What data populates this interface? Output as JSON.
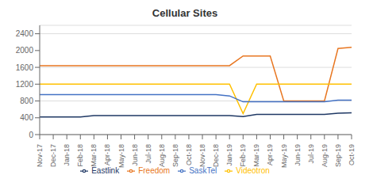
{
  "chart_data": {
    "type": "line",
    "title": "Cellular Sites",
    "categories": [
      "Nov-17",
      "Dec-17",
      "Jan-18",
      "Feb-18",
      "Mar-18",
      "Apr-18",
      "May-18",
      "Jun-18",
      "Jul-18",
      "Aug-18",
      "Sep-18",
      "Oct-18",
      "Nov-18",
      "Dec-18",
      "Jan-19",
      "Feb-19",
      "Mar-19",
      "Apr-19",
      "May-19",
      "Jun-19",
      "Jul-19",
      "Aug-19",
      "Sep-19",
      "Oct-19"
    ],
    "series": [
      {
        "name": "Freedom",
        "color": "#E87722",
        "values": [
          1640,
          1640,
          1640,
          1640,
          1640,
          1640,
          1640,
          1640,
          1640,
          1640,
          1640,
          1640,
          1640,
          1640,
          1640,
          1870,
          1870,
          1870,
          800,
          800,
          800,
          800,
          2050,
          2075
        ]
      },
      {
        "name": "Videotron",
        "color": "#FFC000",
        "values": [
          1200,
          1200,
          1200,
          1200,
          1200,
          1200,
          1200,
          1200,
          1200,
          1200,
          1200,
          1200,
          1200,
          1200,
          1200,
          500,
          1200,
          1200,
          1200,
          1200,
          1200,
          1200,
          1200,
          1200
        ]
      },
      {
        "name": "SaskTel",
        "color": "#4472C4",
        "values": [
          950,
          950,
          950,
          950,
          950,
          950,
          950,
          950,
          950,
          950,
          950,
          950,
          950,
          950,
          920,
          780,
          780,
          780,
          780,
          780,
          780,
          780,
          820,
          820
        ]
      },
      {
        "name": "Eastlink",
        "color": "#1F3864",
        "values": [
          420,
          420,
          420,
          420,
          450,
          450,
          450,
          450,
          450,
          450,
          450,
          450,
          450,
          450,
          450,
          430,
          480,
          480,
          480,
          480,
          480,
          480,
          510,
          520
        ]
      }
    ],
    "ylim": [
      0,
      2600
    ],
    "yticks": [
      0,
      400,
      800,
      1200,
      1600,
      2000,
      2400
    ],
    "grid": true,
    "legend": "bottom"
  }
}
